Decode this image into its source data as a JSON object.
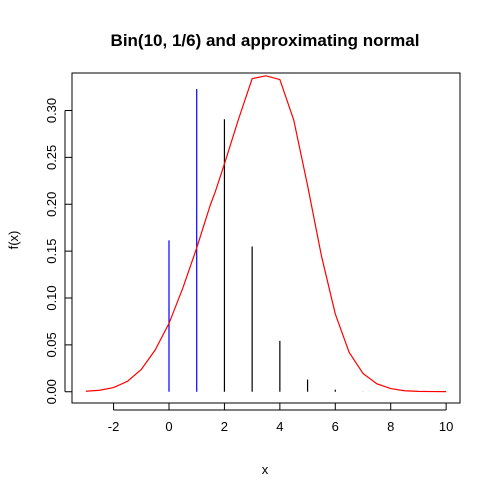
{
  "chart_data": {
    "type": "line",
    "title": "Bin(10, 1/6) and approximating normal",
    "xlabel": "x",
    "ylabel": "f(x)",
    "xlim": [
      -3.5,
      10.5
    ],
    "ylim": [
      -0.012,
      0.34
    ],
    "xticks": [
      "-2",
      "0",
      "2",
      "4",
      "6",
      "8",
      "10"
    ],
    "yticks": [
      "0.00",
      "0.05",
      "0.10",
      "0.15",
      "0.20",
      "0.25",
      "0.30"
    ],
    "grid": false,
    "series": [
      {
        "kind": "pmf-spikes",
        "x": [
          0,
          1,
          2,
          3,
          4,
          5,
          6,
          7,
          8,
          9,
          10
        ],
        "y": [
          0.1615,
          0.323,
          0.2907,
          0.155,
          0.0543,
          0.013,
          0.0022,
          0.0002,
          0.0,
          0.0,
          0.0
        ],
        "colors": [
          "#0000ff",
          "#0000ff",
          "#000000",
          "#000000",
          "#000000",
          "#000000",
          "#000000",
          "#000000",
          "#000000",
          "#000000",
          "#000000"
        ]
      },
      {
        "kind": "density-curve",
        "color": "#ff0000",
        "x": [
          -3,
          -2.5,
          -2,
          -1.5,
          -1,
          -0.5,
          0,
          0.5,
          1,
          1.5,
          1.6667,
          2,
          2.5,
          3,
          3.5,
          4,
          4.5,
          5,
          5.5,
          6,
          6.5,
          7,
          7.5,
          8,
          8.5,
          9,
          9.5,
          10
        ],
        "y": [
          0.0005,
          0.0016,
          0.0045,
          0.0111,
          0.0238,
          0.0445,
          0.0729,
          0.1107,
          0.1534,
          0.2,
          0.213,
          0.243,
          0.29,
          0.334,
          0.337,
          0.333,
          0.29,
          0.22,
          0.145,
          0.083,
          0.042,
          0.0195,
          0.0085,
          0.0034,
          0.0011,
          0.0004,
          0.0002,
          0.0001
        ]
      }
    ]
  }
}
